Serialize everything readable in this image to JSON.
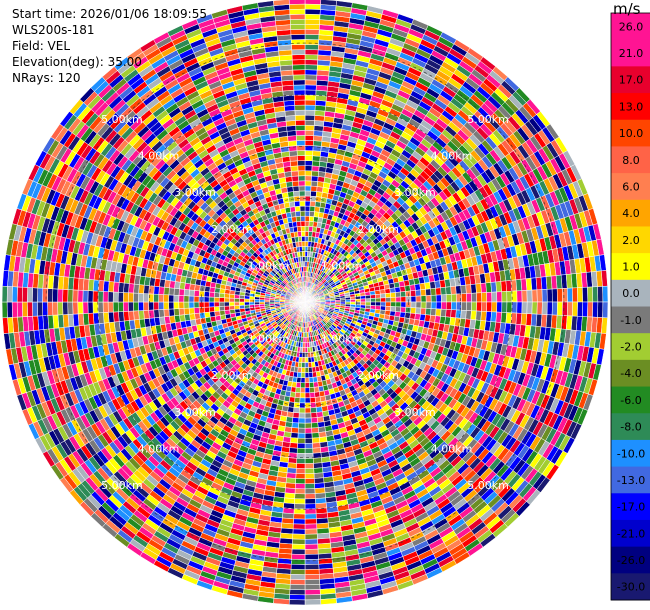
{
  "header": {
    "start_time": "Start time: 2026/01/06 18:09:55",
    "instrument": "WLS200s-181",
    "field": "Field: VEL",
    "elevation": "Elevation(deg): 35.00",
    "nrays": "NRays: 120"
  },
  "chart_data": {
    "type": "heatmap",
    "projection": "polar",
    "field": "VEL",
    "units": "m/s",
    "n_rays": 120,
    "range_rings_km": [
      1,
      2,
      3,
      4,
      5
    ],
    "range_labels": [
      "1.00km",
      "2.00km",
      "3.00km",
      "4.00km",
      "5.00km"
    ],
    "colorbar": {
      "title": "m/s",
      "ticks": [
        "26.0",
        "21.0",
        "17.0",
        "13.0",
        "10.0",
        "8.0",
        "6.0",
        "4.0",
        "2.0",
        "1.0",
        "0.0",
        "-1.0",
        "-2.0",
        "-4.0",
        "-6.0",
        "-8.0",
        "-10.0",
        "-13.0",
        "-17.0",
        "-21.0",
        "-26.0",
        "-30.0"
      ],
      "colors": [
        "#ff1493",
        "#ff1493",
        "#e8002d",
        "#ff0000",
        "#ff4500",
        "#ff6347",
        "#ff7f50",
        "#ffa500",
        "#ffd700",
        "#ffff00",
        "#a9b4bd",
        "#7a7a7a",
        "#a2cd32",
        "#6b8e23",
        "#228b22",
        "#2e8b57",
        "#1e90ff",
        "#4169e1",
        "#0000ff",
        "#0000cd",
        "#000080",
        "#191970"
      ]
    }
  }
}
